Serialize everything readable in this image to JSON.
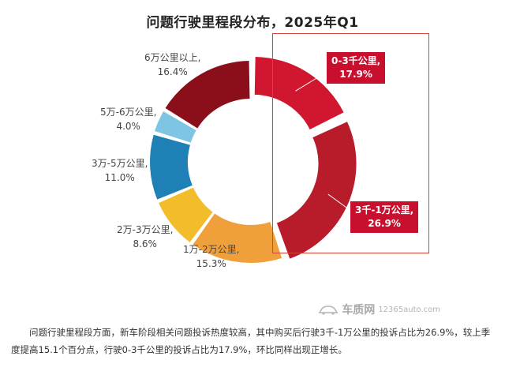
{
  "chart_data": {
    "type": "pie",
    "title": "问题行驶里程段分布，2025年Q1",
    "categories": [
      "0-3千公里",
      "3千-1万公里",
      "1万-2万公里",
      "2万-3万公里",
      "3万-5万公里",
      "5万-6万公里",
      "6万公里以上"
    ],
    "values": [
      17.9,
      26.9,
      15.3,
      8.6,
      11.0,
      4.0,
      16.4
    ],
    "value_labels": [
      "17.9%",
      "26.9%",
      "15.3%",
      "8.6%",
      "11.0%",
      "4.0%",
      "16.4%"
    ],
    "label_text": [
      "0-3千公里,",
      "3千-1万公里,",
      "1万-2万公里,",
      "2万-3万公里,",
      "3万-5万公里,",
      "5万-6万公里,",
      "6万公里以上,"
    ],
    "colors": [
      "#d1172f",
      "#b81c2a",
      "#f0a03a",
      "#f2bd2a",
      "#1f80b5",
      "#7ec4e3",
      "#8b0f1a"
    ],
    "highlighted": [
      "0-3千公里",
      "3千-1万公里"
    ],
    "highlight_color": "#c8102e"
  },
  "watermark": {
    "name": "车质网",
    "site": "12365auto.com"
  },
  "caption": {
    "text": "问题行驶里程段方面，新车阶段相关问题投诉热度较高，其中购买后行驶3千-1万公里的投诉占比为26.9%，较上季度提高15.1个百分点，行驶0-3千公里的投诉占比为17.9%，环比同样出现正增长。"
  }
}
